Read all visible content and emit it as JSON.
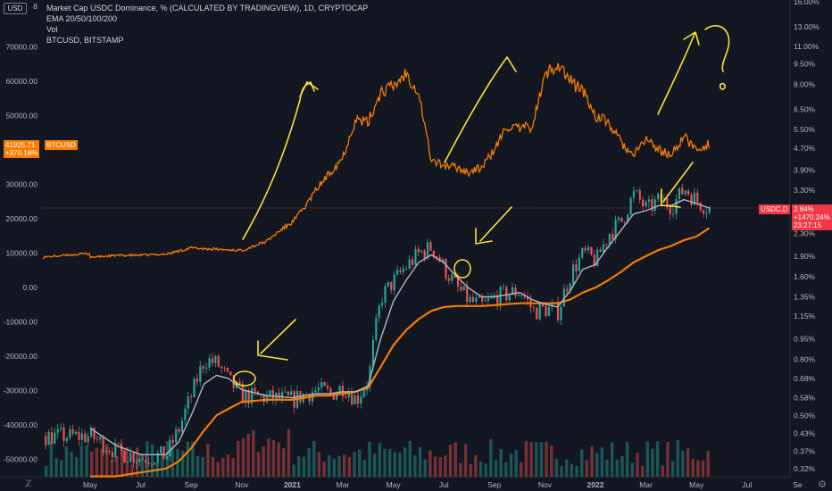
{
  "legend": {
    "line1": "Market Cap USDC Dominance, % (CALCULATED BY TRADINGVIEW), 1D, CRYPTOCAP",
    "line2": "EMA 20/50/100/200",
    "line3": "Vol",
    "line4": "BTCUSD, BITSTAMP"
  },
  "top_left_label": "USD",
  "left_axis_top_label": "8",
  "top_right_label": "",
  "colors": {
    "background": "#131722",
    "btc": "#f57c00",
    "up": "#26a69a",
    "down": "#ef5350",
    "ema_fast": "#b2b5be",
    "ema_slow": "#f57c00",
    "annot": "#ffe135",
    "price_line": "#f23645"
  },
  "chart_data": {
    "type": "line",
    "x_ticks": [
      "May",
      "Jul",
      "Sep",
      "Nov",
      "2021",
      "Mar",
      "May",
      "Jul",
      "Sep",
      "Nov",
      "2022",
      "Mar",
      "May",
      "Jul",
      "Se"
    ],
    "left_axis": {
      "label": "BTCUSD",
      "ticks": [
        70000,
        60000,
        50000,
        40000,
        30000,
        20000,
        10000,
        0,
        -10000,
        -20000,
        -30000,
        -40000,
        -50000
      ],
      "tick_labels": [
        "70000.00",
        "60000.00",
        "50000.00",
        "40000.00",
        "30000.00",
        "20000.00",
        "10000.00",
        "0.00",
        "-10000.00",
        "-20000.00",
        "-30000.00",
        "-40000.00",
        "-50000.00"
      ],
      "ylim": [
        -55000,
        80000
      ]
    },
    "right_axis": {
      "label": "USDC.D",
      "scale": "log",
      "tick_labels": [
        "16.00%",
        "13.00%",
        "11.00%",
        "9.50%",
        "8.00%",
        "6.50%",
        "5.50%",
        "4.70%",
        "3.90%",
        "3.30%",
        "2.30%",
        "1.90%",
        "1.60%",
        "1.35%",
        "1.15%",
        "0.95%",
        "0.80%",
        "0.68%",
        "0.58%",
        "0.50%",
        "0.43%",
        "0.37%",
        "0.32%"
      ],
      "ticks": [
        16,
        13,
        11,
        9.5,
        8,
        6.5,
        5.5,
        4.7,
        3.9,
        3.3,
        2.3,
        1.9,
        1.6,
        1.35,
        1.15,
        0.95,
        0.8,
        0.68,
        0.58,
        0.5,
        0.43,
        0.37,
        0.32
      ],
      "ylim": [
        0.31,
        16.5
      ]
    },
    "btc_series": {
      "name": "BTCUSD",
      "x_months": [
        0,
        1,
        2,
        3,
        4,
        5,
        6,
        7,
        7.5,
        8,
        8.5,
        9,
        9.5,
        10,
        10.5,
        11,
        11.5,
        12,
        12.5,
        13,
        13.5,
        14,
        14.5,
        15,
        15.5,
        16,
        16.5,
        17,
        17.5,
        18,
        18.5,
        19,
        19.5,
        20,
        20.5,
        21,
        21.5,
        22,
        22.5,
        23,
        23.5,
        24,
        24.5
      ],
      "values": [
        8800,
        9300,
        9400,
        9700,
        11500,
        11100,
        10800,
        13500,
        16500,
        19000,
        23500,
        29000,
        33500,
        38000,
        49000,
        48000,
        57000,
        58500,
        62500,
        57000,
        37000,
        35500,
        35000,
        33500,
        35000,
        40000,
        47000,
        46000,
        47000,
        61500,
        65500,
        60000,
        57500,
        50000,
        48000,
        42500,
        38000,
        43500,
        40000,
        38500,
        44000,
        40000,
        41926
      ],
      "last_value_label": "41925.71",
      "last_change_label": "+370.16%",
      "tag": "BTCUSD"
    },
    "usdc_series": {
      "name": "USDC.D",
      "last_value_label": "2.84%",
      "last_change_label": "+1470.24%",
      "countdown": "23:27:15",
      "tag": "USDC.D",
      "x_months": [
        0,
        1,
        2,
        3,
        3.5,
        4,
        4.5,
        5,
        5.5,
        6,
        7,
        8,
        8.5,
        9,
        9.5,
        10,
        10.5,
        11,
        11.5,
        12,
        12.5,
        13,
        13.5,
        14,
        14.5,
        15,
        15.5,
        16,
        17,
        17.5,
        18,
        18.5,
        19,
        19.5,
        20,
        20.5,
        21,
        21.5,
        22,
        22.5,
        23,
        23.5,
        24,
        24.5
      ],
      "close": [
        0.42,
        0.37,
        0.35,
        0.36,
        0.45,
        0.6,
        0.8,
        0.77,
        0.66,
        0.59,
        0.58,
        0.57,
        0.6,
        0.62,
        0.6,
        0.64,
        0.57,
        0.68,
        1.35,
        1.55,
        1.75,
        1.95,
        2.05,
        1.7,
        1.45,
        1.3,
        1.25,
        1.35,
        1.42,
        1.2,
        1.22,
        1.2,
        1.65,
        1.95,
        1.82,
        2.3,
        2.55,
        3.2,
        2.8,
        3.05,
        2.9,
        3.35,
        3.0,
        2.84
      ],
      "ema_fast": [
        0.45,
        0.39,
        0.36,
        0.36,
        0.4,
        0.5,
        0.65,
        0.7,
        0.68,
        0.62,
        0.59,
        0.58,
        0.59,
        0.6,
        0.6,
        0.61,
        0.61,
        0.64,
        0.95,
        1.3,
        1.55,
        1.8,
        1.92,
        1.8,
        1.6,
        1.45,
        1.35,
        1.35,
        1.4,
        1.32,
        1.27,
        1.24,
        1.42,
        1.7,
        1.77,
        2.05,
        2.35,
        2.7,
        2.78,
        2.9,
        2.9,
        3.05,
        2.95,
        2.84
      ],
      "ema_slow": [
        0.3,
        0.3,
        0.31,
        0.32,
        0.34,
        0.38,
        0.44,
        0.5,
        0.53,
        0.56,
        0.57,
        0.57,
        0.58,
        0.59,
        0.59,
        0.6,
        0.61,
        0.63,
        0.75,
        0.9,
        1.02,
        1.12,
        1.2,
        1.24,
        1.25,
        1.25,
        1.25,
        1.26,
        1.28,
        1.28,
        1.28,
        1.28,
        1.32,
        1.4,
        1.46,
        1.55,
        1.66,
        1.8,
        1.9,
        2.0,
        2.07,
        2.17,
        2.24,
        2.4
      ]
    }
  }
}
